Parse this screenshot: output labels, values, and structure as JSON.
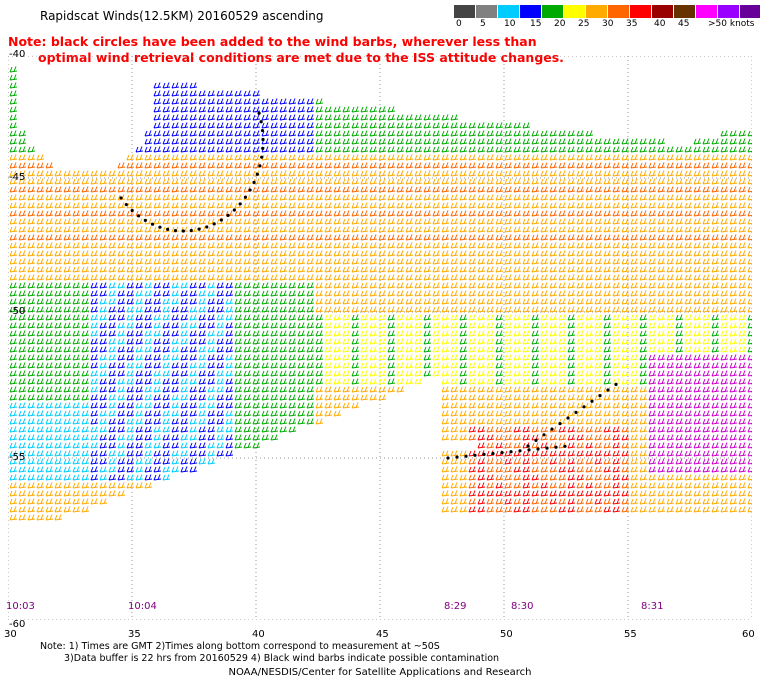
{
  "title": "Rapidscat Winds(12.5KM) 20160529 ascending",
  "scale": {
    "labels": [
      "0",
      "5",
      "10",
      "15",
      "20",
      "25",
      "30",
      "35",
      "40",
      "45",
      ">50 knots"
    ],
    "colors": [
      "#444444",
      "#808080",
      "#00ccff",
      "#0000ff",
      "#00aa00",
      "#ffff00",
      "#ffaa00",
      "#ff6600",
      "#ff0000",
      "#990000",
      "#663300",
      "#ff00ff",
      "#9900ff",
      "#660099"
    ]
  },
  "note": {
    "line1": "Note: black circles have been added to the wind barbs, wherever less than",
    "line2": "optimal wind retrieval conditions are met due to the ISS attitude changes."
  },
  "map": {
    "lat_labels": [
      "-40",
      "-45",
      "-50",
      "-55",
      "-60"
    ],
    "lon_labels": [
      "30",
      "35",
      "40",
      "45",
      "50",
      "55",
      "60"
    ],
    "time_labels": [
      "10:03",
      "10:04",
      "8:29",
      "8:30",
      "8:31"
    ]
  },
  "footnote": {
    "line1": "Note: 1) Times are GMT 2)Times along bottom correspond to measurement at ~50S",
    "line2": "3)Data buffer is 22 hrs from 20160529 4) Black wind barbs indicate possible contamination"
  },
  "credit": "NOAA/NESDIS/Center for Satellite Applications and Research"
}
